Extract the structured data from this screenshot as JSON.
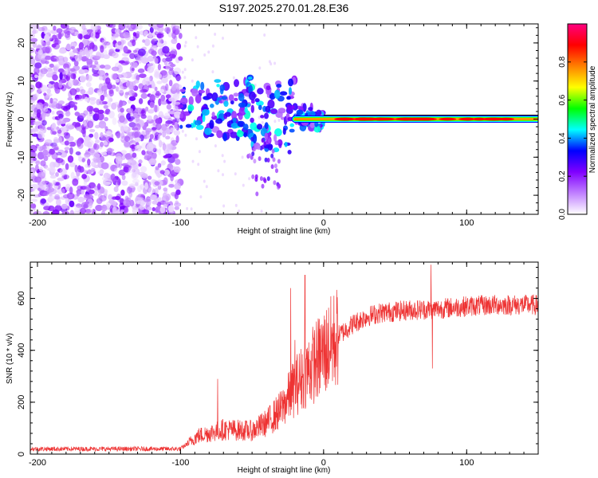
{
  "title": "S197.2025.270.01.28.E36",
  "chart_data": [
    {
      "type": "heatmap",
      "name": "spectrogram",
      "xlabel": "Height of straight line (km)",
      "ylabel": "Frequency (Hz)",
      "xlim": [
        -205,
        150
      ],
      "ylim": [
        -25,
        25
      ],
      "xticks": [
        -200,
        -100,
        0,
        100
      ],
      "yticks": [
        -20,
        -10,
        0,
        10,
        20
      ],
      "noise_region_x": [
        -205,
        -100
      ],
      "signal_line_frequency": 0,
      "colorbar": {
        "label": "Normalized spectral amplitude",
        "range": [
          0.0,
          1.0
        ],
        "ticks": [
          0.0,
          0.2,
          0.4,
          0.6,
          0.8
        ],
        "tick_labels": [
          "0.0",
          "0.2",
          "0.4",
          "0.6",
          "0.8"
        ],
        "colors": [
          "#ffffff",
          "#c080ff",
          "#8000ff",
          "#0000ff",
          "#00ffff",
          "#00ff00",
          "#ffff00",
          "#ff8000",
          "#ff0000",
          "#ff0080"
        ]
      }
    },
    {
      "type": "line",
      "name": "snr",
      "xlabel": "Height of straight line (km)",
      "ylabel": "SNR (10 * v/v)",
      "xlim": [
        -205,
        150
      ],
      "ylim": [
        0,
        740
      ],
      "xticks": [
        -200,
        -100,
        0,
        100
      ],
      "yticks": [
        0,
        200,
        400,
        600
      ],
      "color": "#ee3333",
      "profile_x": [
        -205,
        -100,
        -88,
        -70,
        -50,
        -40,
        -30,
        -20,
        -10,
        0,
        10,
        20,
        30,
        40,
        60,
        80,
        100,
        120,
        150
      ],
      "profile_y": [
        20,
        20,
        70,
        95,
        90,
        120,
        170,
        260,
        330,
        390,
        455,
        500,
        530,
        545,
        555,
        560,
        570,
        575,
        575
      ],
      "spikes": [
        {
          "x": -74,
          "y": 290
        },
        {
          "x": -23,
          "y": 640
        },
        {
          "x": -13,
          "y": 690
        },
        {
          "x": -20,
          "y": 440
        },
        {
          "x": 75,
          "y": 730
        },
        {
          "x": 76,
          "y": 330
        }
      ]
    }
  ]
}
